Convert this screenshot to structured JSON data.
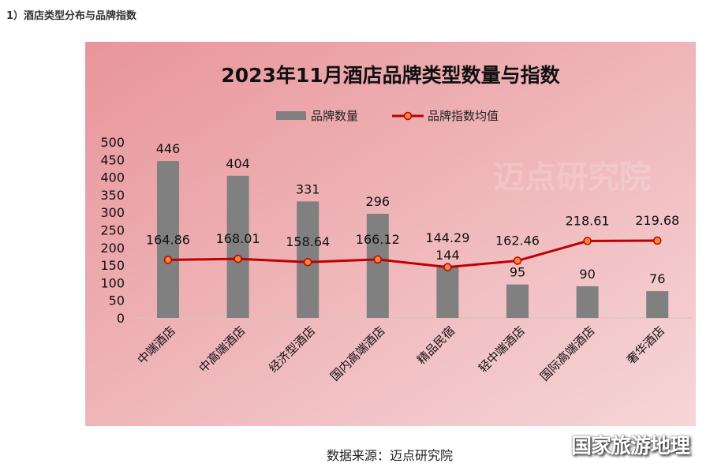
{
  "heading": "1）酒店类型分布与品牌指数",
  "source": "数据来源：迈点研究院",
  "brand_watermark": "国家旅游地理",
  "chart_watermark": "迈点研究院",
  "colors": {
    "bar": "#808080",
    "line": "#c00000",
    "marker": "#f0883a",
    "bg_start": "#e8959a",
    "bg_end": "#f6d6d8"
  },
  "chart_data": {
    "type": "bar+line",
    "title": "2023年11月酒店品牌类型数量与指数",
    "categories": [
      "中端酒店",
      "中高端酒店",
      "经济型酒店",
      "国内高端酒店",
      "精品民宿",
      "轻中端酒店",
      "国际高端酒店",
      "奢华酒店"
    ],
    "series": [
      {
        "name": "品牌数量",
        "type": "bar",
        "values": [
          446,
          404,
          331,
          296,
          144,
          95,
          90,
          76
        ],
        "labels": [
          "446",
          "404",
          "331",
          "296",
          "144",
          "95",
          "90",
          "76"
        ]
      },
      {
        "name": "品牌指数均值",
        "type": "line",
        "values": [
          164.86,
          168.01,
          158.64,
          166.12,
          144.29,
          162.46,
          218.61,
          219.68
        ],
        "labels": [
          "164.86",
          "168.01",
          "158.64",
          "166.12",
          "144.29",
          "162.46",
          "218.61",
          "219.68"
        ]
      }
    ],
    "ylim": [
      0,
      500
    ],
    "yticks": [
      "0",
      "50",
      "100",
      "150",
      "200",
      "250",
      "300",
      "350",
      "400",
      "450",
      "500"
    ],
    "legend": "top",
    "grid": false
  }
}
